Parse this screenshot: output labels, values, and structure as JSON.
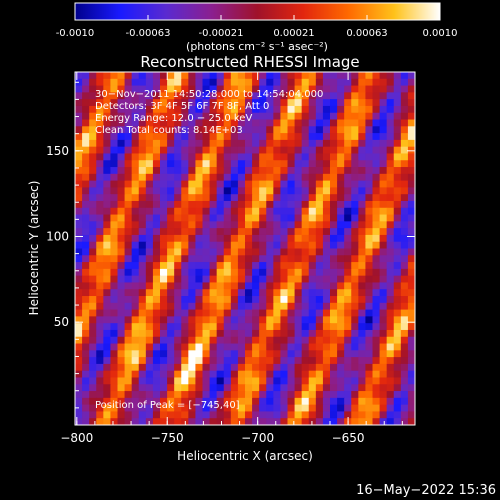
{
  "chart_data": {
    "type": "heatmap",
    "title": "Reconstructed RHESSI Image",
    "colorbar": {
      "ticks": [
        "-0.0010",
        "-0.00063",
        "-0.00021",
        "0.00021",
        "0.00063",
        "0.0010"
      ],
      "unit_label": "(photons cm⁻² s⁻¹ asec⁻²)",
      "range": [
        -0.001,
        0.001
      ],
      "colormap": [
        "#00008b",
        "#1a1aff",
        "#5a2ad0",
        "#8b1f8f",
        "#a0122a",
        "#e2260e",
        "#ff6a00",
        "#ffc21a",
        "#ffffff"
      ]
    },
    "xlabel": "Heliocentric X (arcsec)",
    "ylabel": "Heliocentric Y (arcsec)",
    "x_ticks": [
      "−800",
      "−750",
      "−700",
      "−650"
    ],
    "x_tick_values": [
      -800,
      -750,
      -700,
      -650
    ],
    "y_ticks": [
      "50",
      "100",
      "150"
    ],
    "y_tick_values": [
      50,
      100,
      150
    ],
    "xlim": [
      -801,
      -613
    ],
    "ylim": [
      -10,
      196
    ],
    "annotations": [
      "30−Nov−2011 14:50:28.000 to 14:54:04.000",
      "Detectors: 3F 4F 5F 6F 7F 8F, Att 0",
      "Energy Range: 12.0 − 25.0 keV",
      "Clean     Total counts: 8.14E+03"
    ],
    "peak_label": "Position of Peak = [−745,40]",
    "peak": {
      "x": -745,
      "y": 40
    },
    "image_grid": {
      "cols": 48,
      "rows": 52
    },
    "pattern_note": "diagonal fringe ridges, brightest near peak"
  },
  "footer": {
    "date": "16−May−2022 15:36"
  }
}
